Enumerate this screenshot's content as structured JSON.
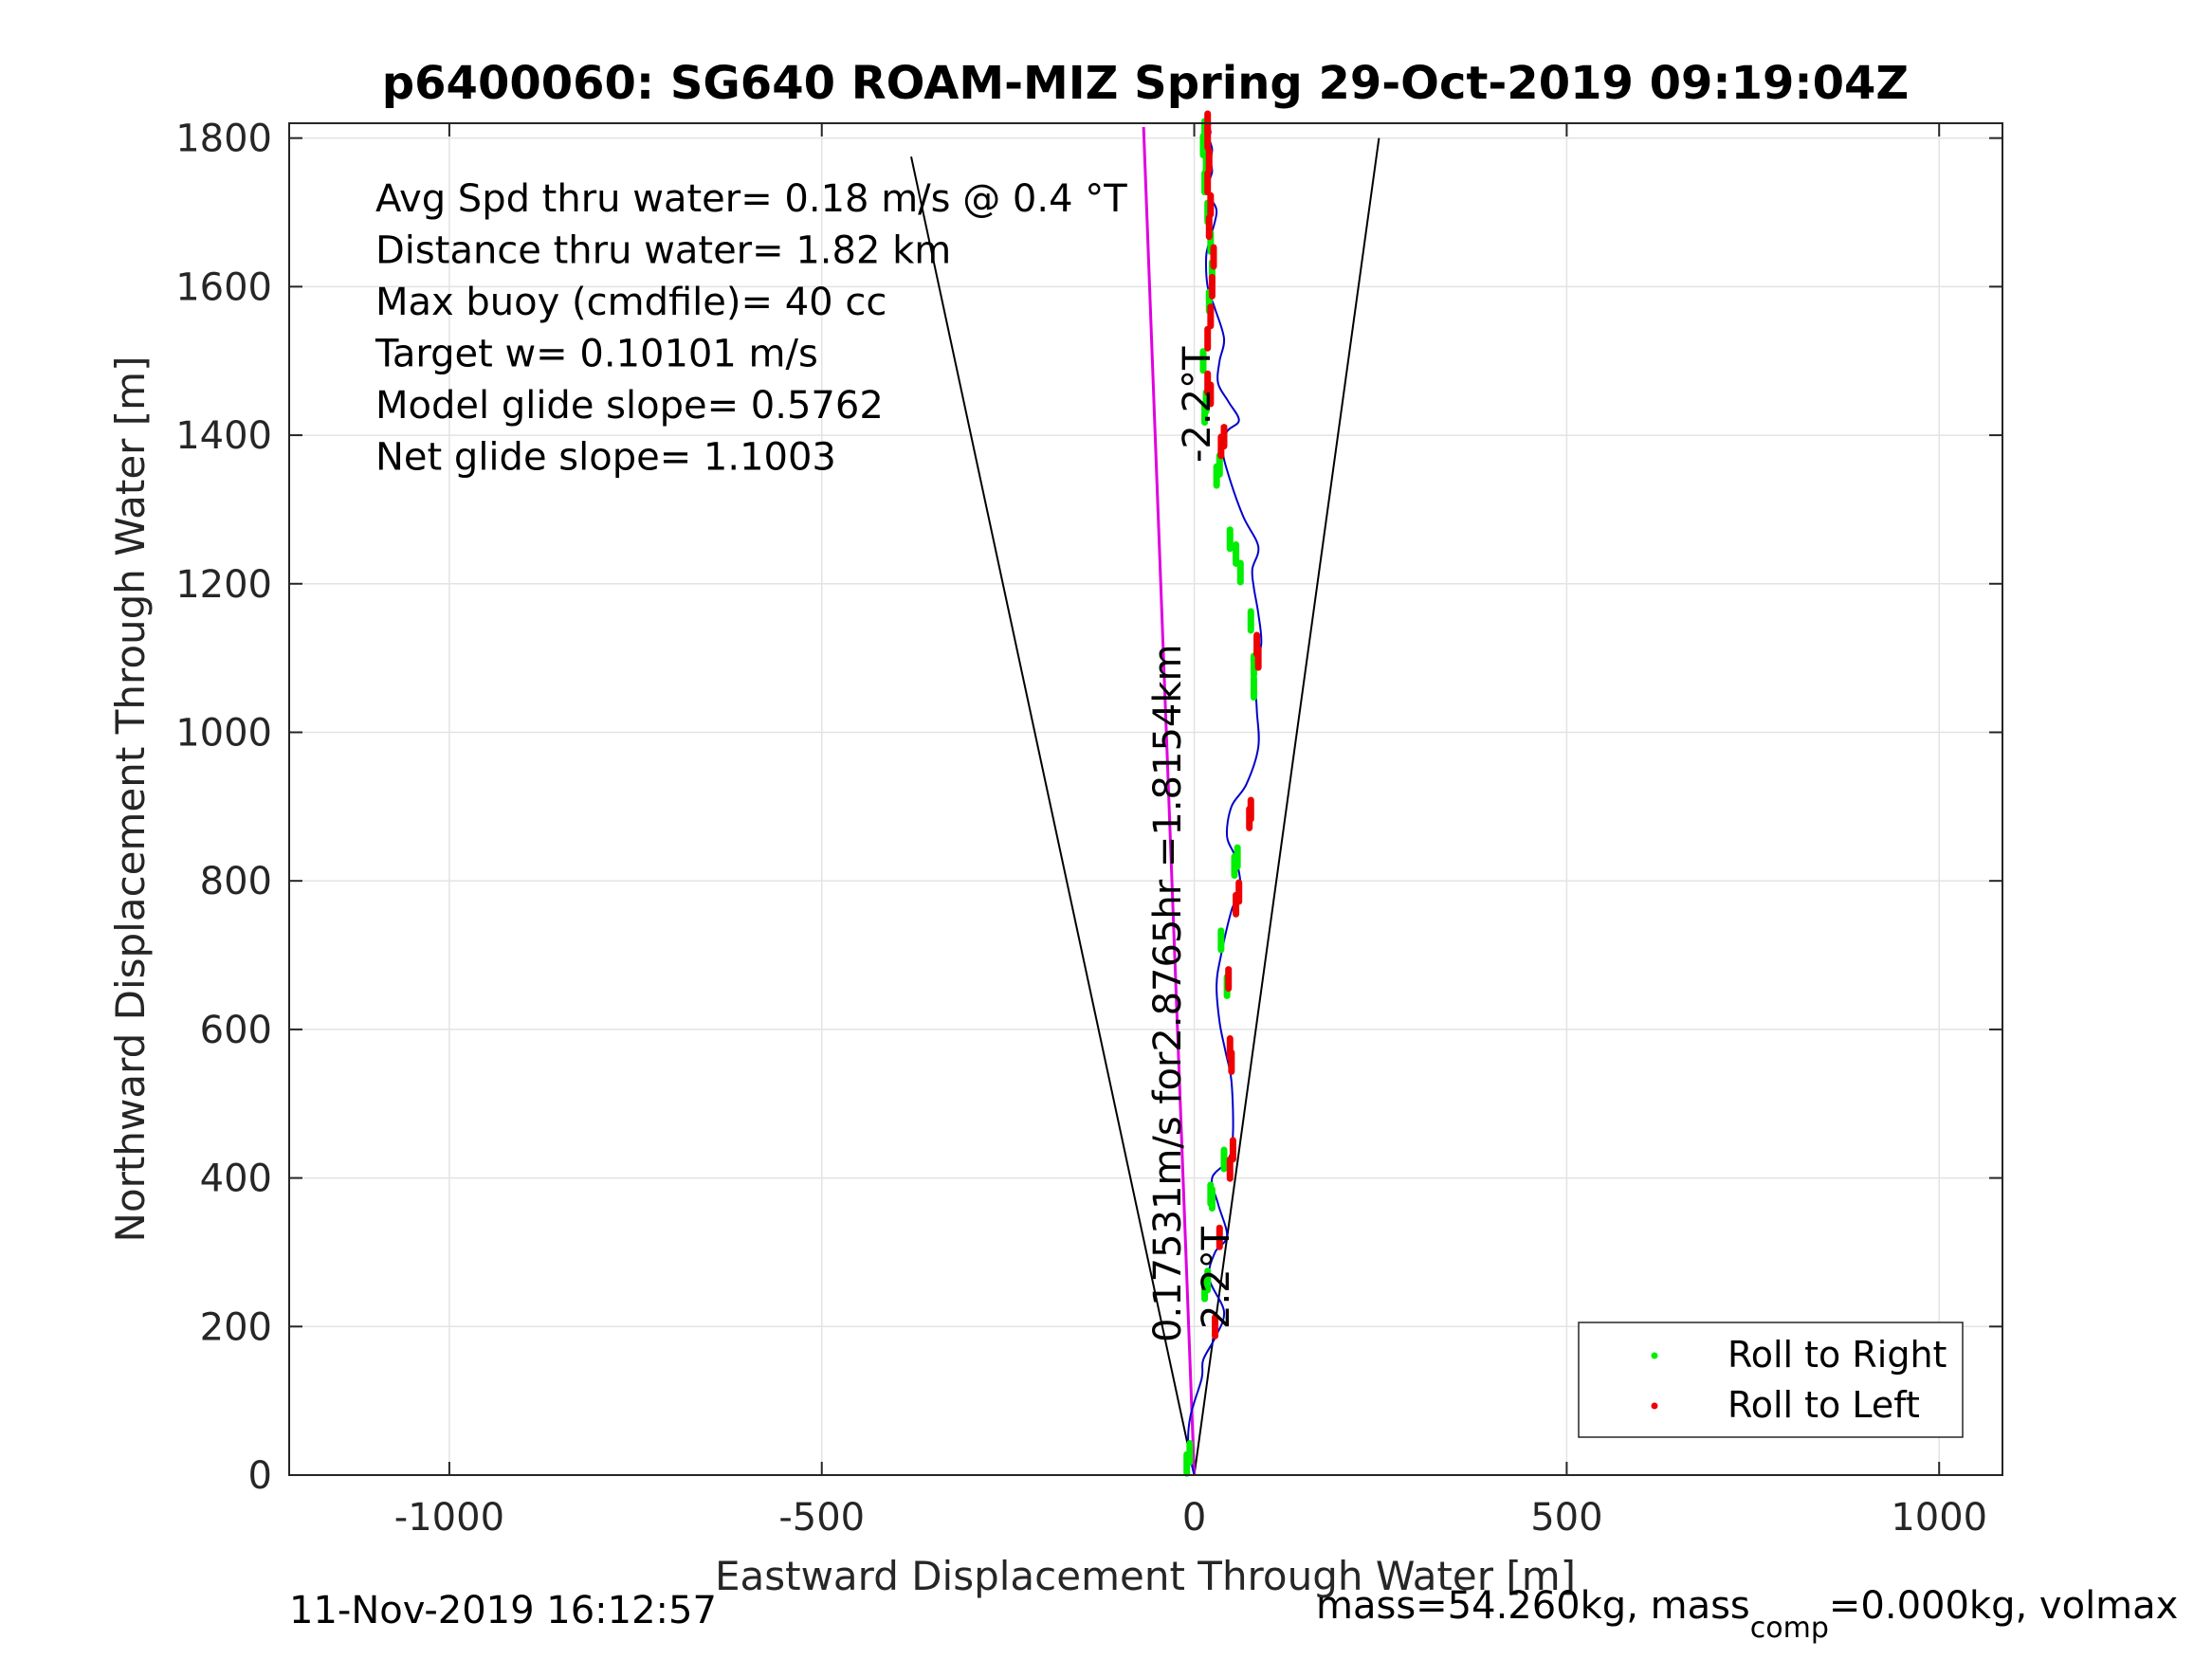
{
  "chart_data": {
    "type": "line",
    "title": "p6400060: SG640 ROAM-MIZ Spring 29-Oct-2019 09:19:04Z",
    "xlabel": "Eastward Displacement Through Water [m]",
    "ylabel": "Northward Displacement Through Water [m]",
    "xlim": [
      -1215,
      1085
    ],
    "ylim": [
      0,
      1820
    ],
    "x_ticks": [
      -1000,
      -500,
      0,
      500,
      1000
    ],
    "y_ticks": [
      0,
      200,
      400,
      600,
      800,
      1000,
      1200,
      1400,
      1600,
      1800
    ],
    "x_tick_labels": [
      "-1000",
      "-500",
      "0",
      "500",
      "1000"
    ],
    "y_tick_labels": [
      "0",
      "200",
      "400",
      "600",
      "800",
      "1000",
      "1200",
      "1400",
      "1600",
      "1800"
    ],
    "grid": true,
    "legend_position": "bottom-right",
    "legend": [
      {
        "label": "Roll to Right",
        "color": "#00ee00"
      },
      {
        "label": "Roll to Left",
        "color": "#ee0000"
      }
    ],
    "colors": {
      "track": "#0000cc",
      "net_line": "#e000e0",
      "roll_right": "#00ee00",
      "roll_left": "#ee0000",
      "cone": "#000000"
    },
    "annotations": {
      "stats": [
        "Avg Spd thru water=  0.18 m/s @   0.4  °T",
        "Distance thru water=  1.82 km",
        "Max buoy (cmdfile)= 40 cc",
        "Target w= 0.10101 m/s",
        "Model glide slope= 0.5762",
        "Net glide slope= 1.1003"
      ],
      "net_line_label": "0.17531m/s for2.8765hr =1.8154km",
      "heading_upper": "-2.2°T",
      "heading_lower": "2.2°T"
    },
    "cone_lines": [
      {
        "x": [
          0,
          -380
        ],
        "y": [
          0,
          1775
        ]
      },
      {
        "x": [
          0,
          248
        ],
        "y": [
          0,
          1800
        ]
      }
    ],
    "net_line": {
      "x": [
        0,
        -68
      ],
      "y": [
        0,
        1815
      ]
    },
    "track": {
      "x": [
        0,
        -8,
        -5,
        10,
        12,
        28,
        40,
        20,
        28,
        44,
        32,
        24,
        46,
        52,
        50,
        42,
        34,
        30,
        36,
        50,
        62,
        56,
        44,
        50,
        70,
        86,
        84,
        82,
        90,
        86,
        80,
        78,
        86,
        66,
        48,
        38,
        44,
        60,
        46,
        32,
        34,
        40,
        28,
        18,
        16,
        20,
        30,
        22,
        20,
        24,
        22,
        24,
        20,
        22,
        20,
        22,
        18,
        20
      ],
      "y": [
        0,
        40,
        80,
        130,
        155,
        185,
        220,
        265,
        300,
        322,
        365,
        400,
        425,
        460,
        530,
        570,
        610,
        660,
        700,
        760,
        790,
        830,
        860,
        900,
        930,
        980,
        1030,
        1080,
        1120,
        1160,
        1195,
        1220,
        1250,
        1290,
        1340,
        1380,
        1405,
        1420,
        1445,
        1470,
        1500,
        1530,
        1570,
        1600,
        1640,
        1660,
        1700,
        1720,
        1740,
        1755,
        1770,
        1785,
        1800,
        1808,
        1815,
        1820,
        1822,
        1823
      ]
    },
    "roll_right": [
      [
        -10,
        15
      ],
      [
        -6,
        30
      ],
      [
        14,
        250
      ],
      [
        18,
        262
      ],
      [
        22,
        378
      ],
      [
        40,
        425
      ],
      [
        24,
        372
      ],
      [
        36,
        720
      ],
      [
        44,
        658
      ],
      [
        58,
        832
      ],
      [
        54,
        820
      ],
      [
        30,
        1345
      ],
      [
        34,
        1360
      ],
      [
        48,
        1260
      ],
      [
        56,
        1240
      ],
      [
        62,
        1215
      ],
      [
        76,
        1150
      ],
      [
        80,
        1090
      ],
      [
        80,
        1060
      ],
      [
        16,
        1445
      ],
      [
        14,
        1430
      ],
      [
        12,
        1500
      ],
      [
        20,
        1580
      ],
      [
        24,
        1620
      ],
      [
        22,
        1660
      ],
      [
        18,
        1700
      ],
      [
        14,
        1740
      ],
      [
        16,
        1760
      ],
      [
        12,
        1790
      ],
      [
        14,
        1810
      ]
    ],
    "roll_left": [
      [
        28,
        200
      ],
      [
        34,
        320
      ],
      [
        48,
        412
      ],
      [
        52,
        438
      ],
      [
        48,
        575
      ],
      [
        50,
        556
      ],
      [
        46,
        668
      ],
      [
        56,
        768
      ],
      [
        60,
        785
      ],
      [
        74,
        884
      ],
      [
        76,
        896
      ],
      [
        84,
        1118
      ],
      [
        86,
        1100
      ],
      [
        36,
        1385
      ],
      [
        40,
        1398
      ],
      [
        22,
        1455
      ],
      [
        18,
        1470
      ],
      [
        18,
        1530
      ],
      [
        22,
        1560
      ],
      [
        24,
        1600
      ],
      [
        26,
        1640
      ],
      [
        20,
        1680
      ],
      [
        22,
        1710
      ],
      [
        18,
        1740
      ],
      [
        20,
        1770
      ],
      [
        18,
        1800
      ],
      [
        18,
        1820
      ]
    ]
  },
  "footer": {
    "timestamp": "11-Nov-2019 16:12:57",
    "mass_text": "mass=54.260kg, mass",
    "mass_sub": "comp",
    "mass_rest": "=0.000kg, volmax"
  }
}
